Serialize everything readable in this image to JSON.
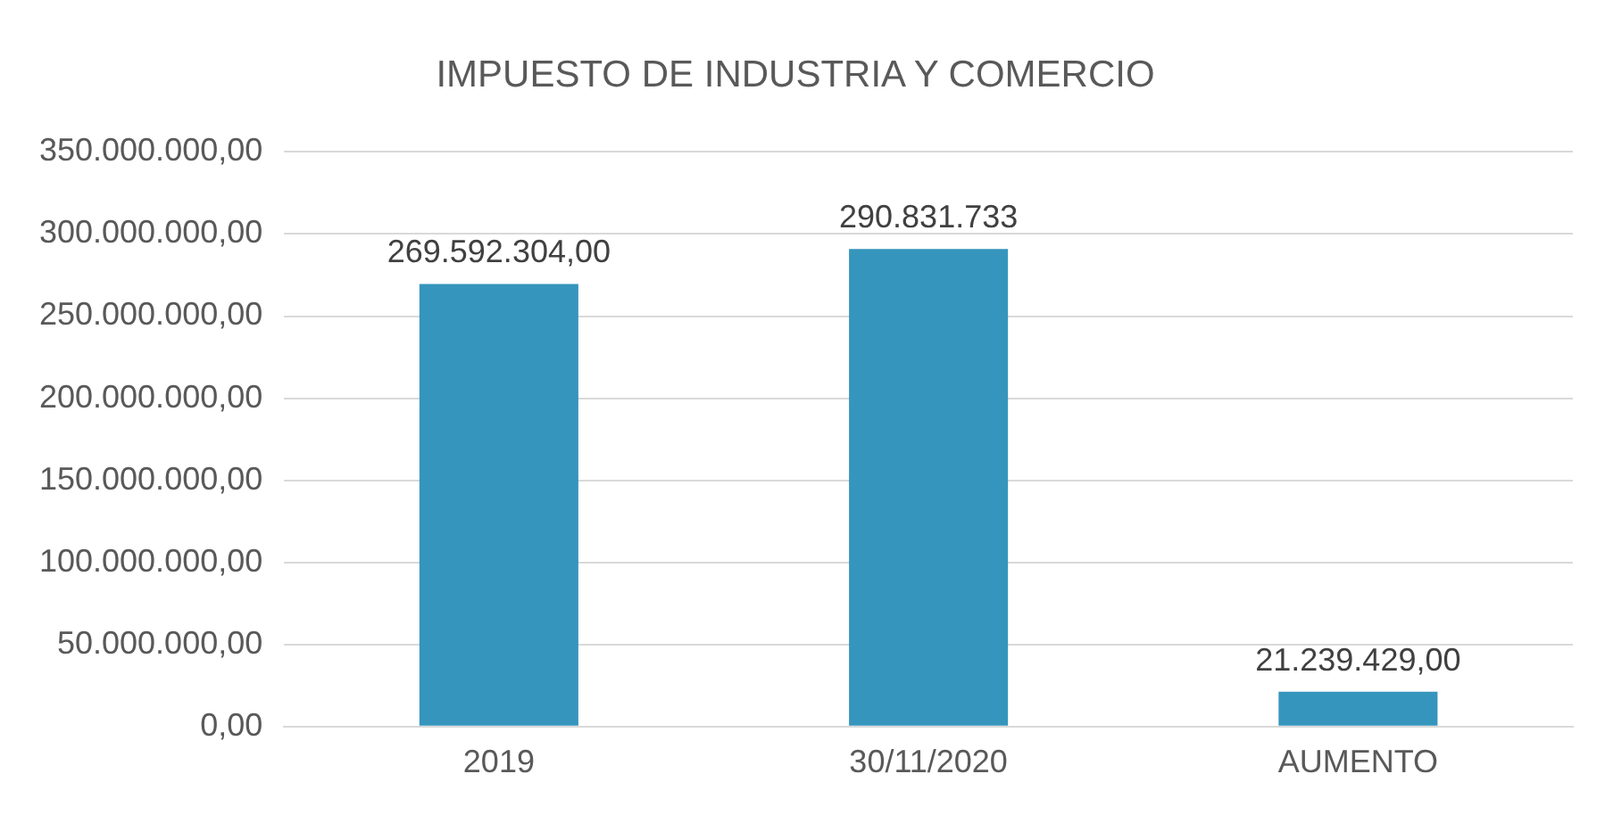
{
  "chart_data": {
    "type": "bar",
    "title": "IMPUESTO DE INDUSTRIA Y COMERCIO",
    "categories": [
      "2019",
      "30/11/2020",
      "AUMENTO"
    ],
    "values": [
      269592304,
      290831733,
      21239429
    ],
    "value_labels": [
      "269.592.304,00",
      "290.831.733",
      "21.239.429,00"
    ],
    "color": "#3595bc",
    "ylim": [
      0,
      350000000
    ],
    "yticks": [
      {
        "value": 0,
        "label": "0,00"
      },
      {
        "value": 50000000,
        "label": "50.000.000,00"
      },
      {
        "value": 100000000,
        "label": "100.000.000,00"
      },
      {
        "value": 150000000,
        "label": "150.000.000,00"
      },
      {
        "value": 200000000,
        "label": "200.000.000,00"
      },
      {
        "value": 250000000,
        "label": "250.000.000,00"
      },
      {
        "value": 300000000,
        "label": "300.000.000,00"
      },
      {
        "value": 350000000,
        "label": "350.000.000,00"
      }
    ],
    "grid": "y"
  }
}
